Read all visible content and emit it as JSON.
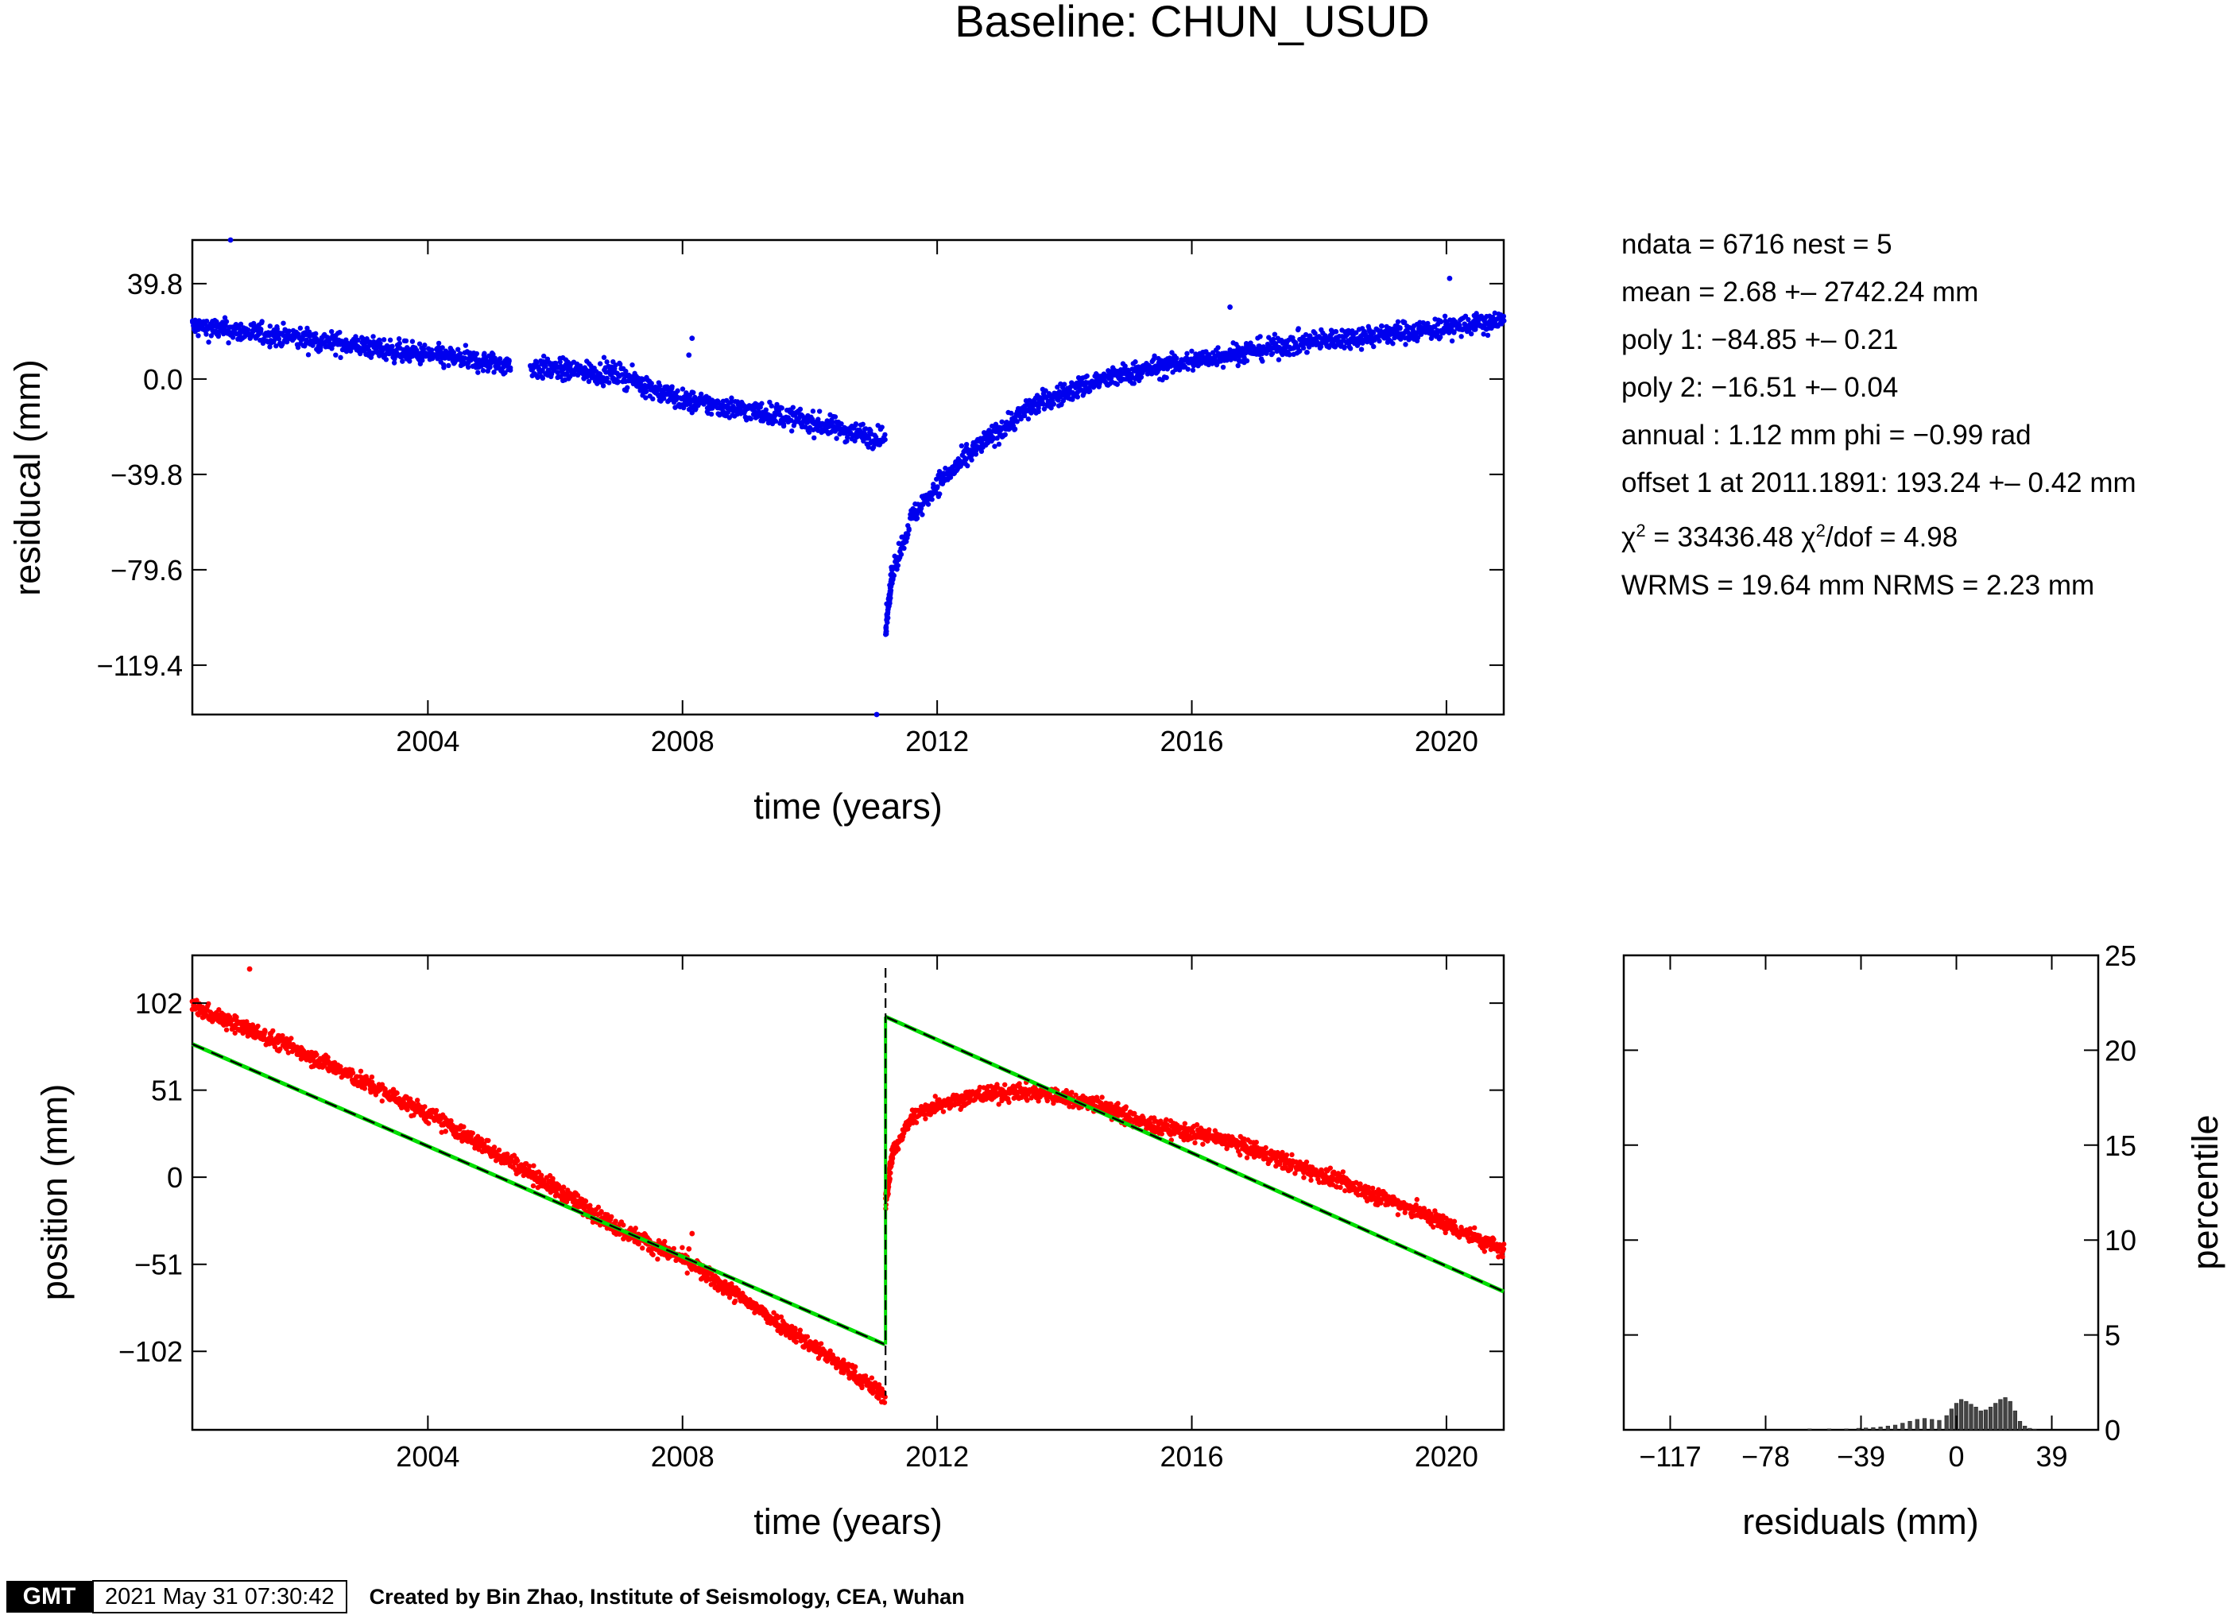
{
  "title": "Baseline: CHUN_USUD",
  "stats": {
    "line1": "ndata = 6716  nest = 5",
    "line2": "mean = 2.68 +– 2742.24 mm",
    "line3": "poly 1: −84.85 +– 0.21",
    "line4": "poly 2: −16.51 +– 0.04",
    "line5": "annual : 1.12 mm  phi = −0.99 rad",
    "line6": "offset 1 at 2011.1891: 193.24 +– 0.42 mm",
    "chi2_a": "χ",
    "chi2_b": " = 33436.48  χ",
    "chi2_c": "/dof = 4.98",
    "chi2_sup": "2",
    "line8": "WRMS = 19.64 mm  NRMS = 2.23 mm"
  },
  "footer": {
    "logo": "GMT",
    "timestamp": "2021 May 31 07:30:42",
    "credit": "Created by Bin Zhao, Institute of Seismology, CEA, Wuhan"
  },
  "colors": {
    "residual": "#0000ee",
    "position": "#ff0000",
    "model_green": "#00dd00",
    "model_black": "#000000",
    "hist": "#444444"
  },
  "chart_data": [
    {
      "type": "scatter",
      "name": "residuals",
      "xlabel": "time (years)",
      "ylabel": "residucal (mm)",
      "xlim": [
        2000.3,
        2020.9
      ],
      "ylim": [
        -140,
        58
      ],
      "xticks": [
        2004,
        2008,
        2012,
        2016,
        2020
      ],
      "yticks": [
        39.8,
        0.0,
        -39.8,
        -79.6,
        -119.4
      ],
      "ytick_labels": [
        "39.8",
        "0.0",
        "−39.8",
        "−79.6",
        "−119.4"
      ],
      "trend_pre": [
        [
          2000.3,
          22
        ],
        [
          2002,
          17
        ],
        [
          2004,
          10
        ],
        [
          2005.5,
          5
        ],
        [
          2007,
          2
        ],
        [
          2008,
          -9
        ],
        [
          2009.5,
          -15
        ],
        [
          2010.5,
          -21
        ],
        [
          2011.18,
          -25
        ]
      ],
      "trend_post": [
        [
          2011.19,
          -105
        ],
        [
          2011.3,
          -80
        ],
        [
          2011.6,
          -58
        ],
        [
          2012,
          -44
        ],
        [
          2012.7,
          -27
        ],
        [
          2013.5,
          -11
        ],
        [
          2014.5,
          -1
        ],
        [
          2015.3,
          4
        ],
        [
          2016.5,
          10
        ],
        [
          2018,
          16
        ],
        [
          2019.5,
          20
        ],
        [
          2020.9,
          24
        ]
      ],
      "gap": [
        2005.3,
        2005.6
      ],
      "outliers": [
        [
          2000.9,
          58
        ],
        [
          2008.15,
          17
        ],
        [
          2008.1,
          10
        ],
        [
          2011.05,
          -140
        ],
        [
          2016.6,
          30
        ],
        [
          2020.05,
          42
        ]
      ]
    },
    {
      "type": "scatter",
      "name": "position",
      "xlabel": "time (years)",
      "ylabel": "position (mm)",
      "xlim": [
        2000.3,
        2020.9
      ],
      "ylim": [
        -148,
        130
      ],
      "xticks": [
        2004,
        2008,
        2012,
        2016,
        2020
      ],
      "yticks": [
        102,
        51,
        0,
        -51,
        -102
      ],
      "ytick_labels": [
        "102",
        "51",
        "0",
        "−51",
        "−102"
      ],
      "trend_pre": [
        [
          2000.3,
          100
        ],
        [
          2002,
          74
        ],
        [
          2004,
          37
        ],
        [
          2005.5,
          5
        ],
        [
          2007,
          -30
        ],
        [
          2008,
          -48
        ],
        [
          2009.5,
          -85
        ],
        [
          2011.18,
          -128
        ]
      ],
      "trend_post": [
        [
          2011.19,
          -15
        ],
        [
          2011.3,
          15
        ],
        [
          2011.6,
          35
        ],
        [
          2012,
          43
        ],
        [
          2012.8,
          49
        ],
        [
          2013.5,
          50
        ],
        [
          2014.5,
          43
        ],
        [
          2015.3,
          31
        ],
        [
          2016.5,
          22
        ],
        [
          2018,
          2
        ],
        [
          2019.5,
          -19
        ],
        [
          2020.9,
          -43
        ]
      ],
      "model_pre": [
        [
          2000.3,
          78
        ],
        [
          2011.18,
          -98
        ]
      ],
      "model_post": [
        [
          2011.19,
          94
        ],
        [
          2020.9,
          -67
        ]
      ],
      "offset_epoch": 2011.1891,
      "outliers": [
        [
          2001.2,
          122
        ],
        [
          2008.15,
          -33
        ],
        [
          2008.1,
          -42
        ]
      ]
    },
    {
      "type": "bar",
      "name": "histogram",
      "xlabel": "residuals (mm)",
      "ylabel": "percentile",
      "xlim": [
        -136,
        58
      ],
      "ylim": [
        0,
        25
      ],
      "xticks": [
        -117,
        -78,
        -39,
        0,
        39
      ],
      "xtick_labels": [
        "−117",
        "−78",
        "−39",
        "0",
        "39"
      ],
      "yticks": [
        0,
        5,
        10,
        15,
        20,
        25
      ],
      "ytick_labels": [
        "0",
        "5",
        "10",
        "15",
        "20",
        "25"
      ],
      "bin_width": 1.5,
      "bins": [
        [
          -60,
          0.05
        ],
        [
          -52,
          0.05
        ],
        [
          -45,
          0.05
        ],
        [
          -40,
          0.08
        ],
        [
          -37,
          0.1
        ],
        [
          -34,
          0.12
        ],
        [
          -31,
          0.15
        ],
        [
          -28,
          0.2
        ],
        [
          -25,
          0.25
        ],
        [
          -22,
          0.35
        ],
        [
          -19,
          0.45
        ],
        [
          -16,
          0.55
        ],
        [
          -13,
          0.6
        ],
        [
          -10,
          0.55
        ],
        [
          -7,
          0.5
        ],
        [
          -4,
          0.75
        ],
        [
          -2,
          1.1
        ],
        [
          0,
          1.4
        ],
        [
          2,
          1.6
        ],
        [
          4,
          1.5
        ],
        [
          6,
          1.35
        ],
        [
          8,
          1.2
        ],
        [
          10,
          1.0
        ],
        [
          12,
          1.05
        ],
        [
          14,
          1.2
        ],
        [
          16,
          1.4
        ],
        [
          18,
          1.6
        ],
        [
          20,
          1.7
        ],
        [
          22,
          1.5
        ],
        [
          24,
          1.0
        ],
        [
          26,
          0.45
        ],
        [
          28,
          0.2
        ],
        [
          30,
          0.08
        ],
        [
          32,
          0.03
        ]
      ]
    }
  ]
}
